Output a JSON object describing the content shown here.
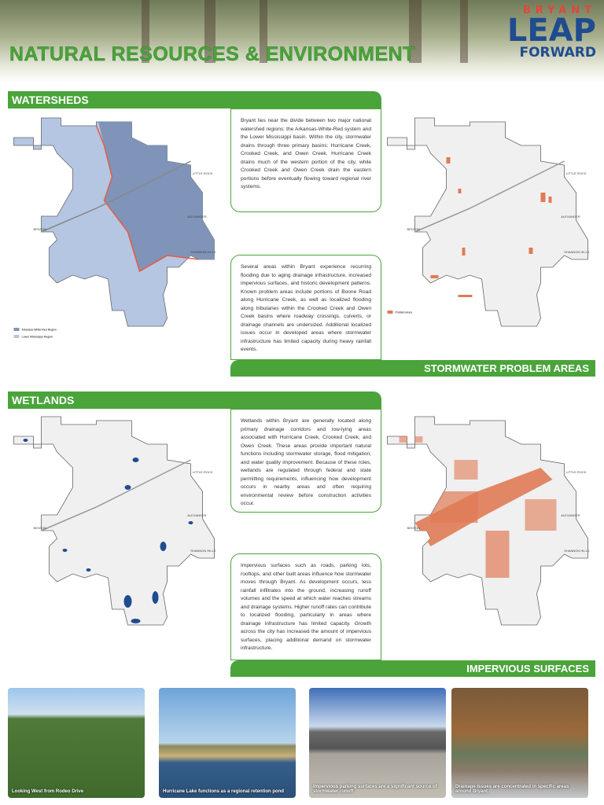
{
  "header": {
    "title": "NATURAL RESOURCES & ENVIRONMENT",
    "logo": {
      "top": "BRYANT",
      "main": "LEAP",
      "sub": "FORWARD"
    }
  },
  "map_labels": [
    "BENTON",
    "LITTLE ROCK",
    "ALEXANDER",
    "SHANNON HILLS"
  ],
  "sections": [
    {
      "title": "WATERSHEDS",
      "subtitle": "STORMWATER PROBLEM AREAS",
      "text_1": "Bryant lies near the divide between two major national watershed regions: the Arkansas-White-Red system and the Lower Mississippi basin. Within the city, stormwater drains through three primary basins: Hurricane Creek, Crooked Creek, and Owen Creek. Hurricane Creek drains much of the western portion of the city, while Crooked Creek and Owen Creek drain the eastern portions before eventually flowing toward regional river systems.",
      "text_2": "Several areas within Bryant experience recurring flooding due to aging drainage infrastructure, increased impervious surfaces, and historic development patterns. Known problem areas include portions of Boone Road along Hurricane Creek, as well as localized flooding along tributaries within the Crooked Creek and Owen Creek basins where roadway crossings, culverts, or drainage channels are undersized. Additional localized issues occur in developed areas where stormwater infrastructure has limited capacity during heavy rainfall events.",
      "legend_left": [
        "Arkansas-White-Red Region",
        "Lower Mississippi Region"
      ],
      "legend_right": [
        "Problem Area"
      ]
    },
    {
      "title": "WETLANDS",
      "subtitle": "IMPERVIOUS SURFACES",
      "text_1": "Wetlands within Bryant are generally located along primary drainage corridors and low-lying areas associated with Hurricane Creek, Crooked Creek, and Owen Creek. These areas provide important natural functions including stormwater storage, flood mitigation, and water quality improvement. Because of these roles, wetlands are regulated through federal and state permitting requirements, influencing how development occurs in nearby areas and often requiring environmental review before construction activities occur.",
      "text_2": "Impervious surfaces such as roads, parking lots, rooftops, and other built areas influence how stormwater moves through Bryant. As development occurs, less rainfall infiltrates into the ground, increasing runoff volumes and the speed at which water reaches streams and drainage systems. Higher runoff rates can contribute to localized flooding, particularly in areas where drainage infrastructure has limited capacity. Growth across the city has increased the amount of impervious surfaces, placing additional demand on stormwater infrastructure."
    }
  ],
  "photos": [
    {
      "caption": "Looking West from Rodeo Drive"
    },
    {
      "caption": "Hurricane Lake functions as a regional retention pond"
    },
    {
      "caption": "Impervious parking surfaces are a significant source of stormwater runoff"
    },
    {
      "caption": "Drainage issues are concentrated in specific areas around Bryant"
    }
  ]
}
